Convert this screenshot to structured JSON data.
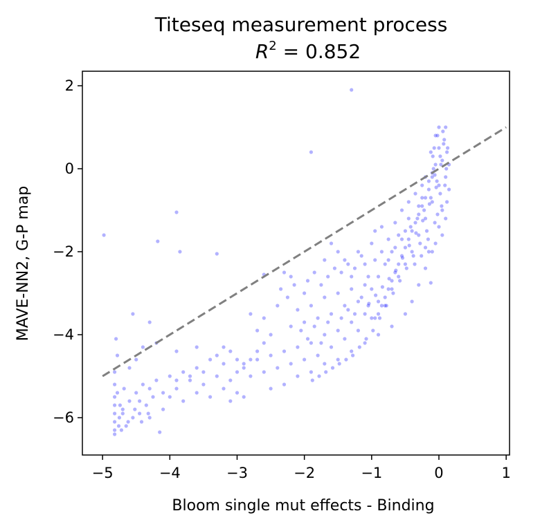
{
  "chart_data": {
    "type": "scatter",
    "title": "Titeseq measurement process",
    "subtitle_prefix": "R",
    "subtitle_exp": "2",
    "subtitle_suffix": " = 0.852",
    "xlabel": "Bloom single mut effects - Binding",
    "ylabel": "MAVE-NN2, G-P map",
    "xlim": [
      -5.3,
      1.05
    ],
    "ylim": [
      -6.9,
      2.35
    ],
    "xticks": [
      -5,
      -4,
      -3,
      -2,
      -1,
      0,
      1
    ],
    "xtick_labels": [
      "−5",
      "−4",
      "−3",
      "−2",
      "−1",
      "0",
      "1"
    ],
    "yticks": [
      -6,
      -4,
      -2,
      0,
      2
    ],
    "ytick_labels": [
      "−6",
      "−4",
      "−2",
      "0",
      "2"
    ],
    "grid": false,
    "point_color": "#0000ff",
    "reference_line": {
      "x": [
        -5,
        1
      ],
      "y": [
        -5,
        1
      ],
      "color": "#808080",
      "style": "dashed"
    },
    "series": [
      {
        "points": [
          [
            -4.82,
            -6.1
          ],
          [
            -4.82,
            -5.9
          ],
          [
            -4.82,
            -6.3
          ],
          [
            -4.82,
            -5.5
          ],
          [
            -4.82,
            -5.2
          ],
          [
            -4.82,
            -4.9
          ],
          [
            -4.82,
            -6.4
          ],
          [
            -4.82,
            -5.7
          ],
          [
            -4.8,
            -4.1
          ],
          [
            -4.78,
            -4.5
          ],
          [
            -4.7,
            -5.8
          ],
          [
            -4.65,
            -6.2
          ],
          [
            -4.6,
            -5.6
          ],
          [
            -4.55,
            -6.0
          ],
          [
            -4.5,
            -5.4
          ],
          [
            -4.45,
            -5.9
          ],
          [
            -4.4,
            -5.2
          ],
          [
            -4.35,
            -5.7
          ],
          [
            -4.3,
            -6.0
          ],
          [
            -4.25,
            -5.5
          ],
          [
            -4.6,
            -4.8
          ],
          [
            -4.5,
            -4.6
          ],
          [
            -4.72,
            -6.3
          ],
          [
            -4.68,
            -5.3
          ],
          [
            -4.55,
            -3.5
          ],
          [
            -4.3,
            -3.7
          ],
          [
            -4.2,
            -4.2
          ],
          [
            -4.98,
            -1.6
          ],
          [
            -4.18,
            -1.75
          ],
          [
            -3.9,
            -1.05
          ],
          [
            -3.85,
            -2.0
          ],
          [
            -3.3,
            -2.05
          ],
          [
            -1.9,
            0.4
          ],
          [
            -1.3,
            1.9
          ],
          [
            -4.15,
            -6.35
          ],
          [
            -4.1,
            -5.8
          ],
          [
            -4.0,
            -5.5
          ],
          [
            -3.9,
            -5.3
          ],
          [
            -3.8,
            -5.6
          ],
          [
            -3.7,
            -5.1
          ],
          [
            -3.6,
            -5.4
          ],
          [
            -3.5,
            -5.2
          ],
          [
            -3.4,
            -5.5
          ],
          [
            -3.3,
            -5.0
          ],
          [
            -3.2,
            -5.3
          ],
          [
            -3.1,
            -5.1
          ],
          [
            -3.0,
            -5.4
          ],
          [
            -3.0,
            -4.9
          ],
          [
            -2.9,
            -4.7
          ],
          [
            -2.8,
            -5.0
          ],
          [
            -2.7,
            -4.6
          ],
          [
            -2.6,
            -4.9
          ],
          [
            -2.5,
            -4.5
          ],
          [
            -2.4,
            -4.8
          ],
          [
            -2.3,
            -4.4
          ],
          [
            -2.2,
            -4.7
          ],
          [
            -2.1,
            -4.3
          ],
          [
            -2.0,
            -4.6
          ],
          [
            -1.9,
            -4.2
          ],
          [
            -1.8,
            -4.5
          ],
          [
            -1.7,
            -4.0
          ],
          [
            -1.6,
            -4.3
          ],
          [
            -1.5,
            -3.9
          ],
          [
            -1.4,
            -4.1
          ],
          [
            -1.3,
            -3.7
          ],
          [
            -1.2,
            -3.9
          ],
          [
            -1.1,
            -3.5
          ],
          [
            -1.0,
            -3.6
          ],
          [
            -0.9,
            -3.2
          ],
          [
            -0.8,
            -3.3
          ],
          [
            -0.7,
            -2.9
          ],
          [
            -0.6,
            -2.6
          ],
          [
            -0.5,
            -2.3
          ],
          [
            -0.4,
            -2.0
          ],
          [
            -0.3,
            -1.6
          ],
          [
            -0.2,
            -1.2
          ],
          [
            -0.1,
            -0.8
          ],
          [
            0.0,
            -0.4
          ],
          [
            0.05,
            0.2
          ],
          [
            0.0,
            0.5
          ],
          [
            0.02,
            0.3
          ],
          [
            -0.05,
            0.1
          ],
          [
            -0.1,
            -0.2
          ],
          [
            -0.15,
            -0.5
          ],
          [
            -0.2,
            -0.7
          ],
          [
            -0.25,
            -0.9
          ],
          [
            -0.3,
            -1.1
          ],
          [
            -0.35,
            -1.3
          ],
          [
            -0.4,
            -1.5
          ],
          [
            -0.45,
            -1.7
          ],
          [
            -0.5,
            -1.9
          ],
          [
            -0.55,
            -2.1
          ],
          [
            -0.6,
            -2.3
          ],
          [
            -0.65,
            -2.5
          ],
          [
            -0.7,
            -2.7
          ],
          [
            -0.75,
            -2.9
          ],
          [
            -0.8,
            -3.1
          ],
          [
            -0.85,
            -3.3
          ],
          [
            -0.9,
            -3.5
          ],
          [
            -0.95,
            -3.6
          ],
          [
            0.1,
            1.0
          ],
          [
            0.0,
            1.0
          ],
          [
            -0.05,
            0.8
          ],
          [
            0.08,
            0.7
          ],
          [
            0.12,
            0.4
          ],
          [
            0.15,
            0.1
          ],
          [
            -0.12,
            -2.75
          ],
          [
            -0.2,
            -1.9
          ],
          [
            -0.15,
            -2.0
          ],
          [
            -2.6,
            -2.55
          ],
          [
            -2.3,
            -2.5
          ],
          [
            -2.2,
            -2.6
          ],
          [
            -2.0,
            -3.0
          ],
          [
            -1.7,
            -2.2
          ],
          [
            -1.6,
            -1.8
          ],
          [
            -1.5,
            -2.0
          ],
          [
            -1.55,
            -2.4
          ],
          [
            -1.4,
            -2.2
          ],
          [
            -1.3,
            -2.6
          ],
          [
            -1.2,
            -2.0
          ],
          [
            -1.1,
            -2.3
          ],
          [
            -1.0,
            -1.8
          ],
          [
            -1.05,
            -2.6
          ],
          [
            -0.95,
            -1.5
          ],
          [
            -0.85,
            -1.4
          ],
          [
            -0.75,
            -1.7
          ],
          [
            -0.65,
            -1.3
          ],
          [
            -0.55,
            -1.0
          ],
          [
            -0.45,
            -0.8
          ],
          [
            -0.35,
            -0.6
          ],
          [
            -0.25,
            -0.4
          ],
          [
            -0.2,
            -0.2
          ],
          [
            -0.1,
            -0.1
          ],
          [
            -2.4,
            -3.3
          ],
          [
            -2.2,
            -3.8
          ],
          [
            -2.1,
            -3.4
          ],
          [
            -2.0,
            -3.7
          ],
          [
            -1.9,
            -3.3
          ],
          [
            -1.8,
            -3.6
          ],
          [
            -1.7,
            -3.1
          ],
          [
            -1.6,
            -3.5
          ],
          [
            -1.5,
            -3.0
          ],
          [
            -1.4,
            -3.3
          ],
          [
            -1.3,
            -2.9
          ],
          [
            -1.2,
            -3.2
          ],
          [
            -1.1,
            -2.8
          ],
          [
            -2.8,
            -3.5
          ],
          [
            -2.7,
            -3.9
          ],
          [
            -2.6,
            -3.6
          ],
          [
            -2.5,
            -4.0
          ],
          [
            -3.2,
            -4.3
          ],
          [
            -3.4,
            -4.6
          ],
          [
            -3.6,
            -4.8
          ],
          [
            -3.8,
            -4.9
          ],
          [
            -4.0,
            -5.0
          ],
          [
            -4.2,
            -5.1
          ],
          [
            -3.6,
            -4.3
          ],
          [
            -3.9,
            -4.4
          ],
          [
            -4.4,
            -4.3
          ],
          [
            -3.1,
            -5.6
          ],
          [
            -2.9,
            -5.5
          ],
          [
            -2.5,
            -5.3
          ],
          [
            -2.3,
            -5.2
          ],
          [
            -2.1,
            -5.0
          ],
          [
            -1.9,
            -4.9
          ],
          [
            -1.7,
            -4.7
          ],
          [
            -1.5,
            -4.6
          ],
          [
            -1.3,
            -4.4
          ],
          [
            -1.1,
            -4.2
          ],
          [
            -0.9,
            -4.0
          ],
          [
            -0.7,
            -3.8
          ],
          [
            -0.5,
            -3.5
          ],
          [
            -0.4,
            -3.2
          ],
          [
            -0.3,
            -2.8
          ],
          [
            -0.2,
            -2.4
          ],
          [
            -0.1,
            -2.0
          ],
          [
            0.05,
            -1.6
          ],
          [
            0.1,
            -1.2
          ],
          [
            0.12,
            -0.8
          ],
          [
            0.15,
            -0.5
          ],
          [
            0.1,
            -0.2
          ],
          [
            0.05,
            -1.0
          ],
          [
            0.0,
            -1.4
          ],
          [
            -0.05,
            -1.8
          ],
          [
            -0.6,
            -1.6
          ],
          [
            -0.7,
            -2.0
          ],
          [
            -0.8,
            -2.3
          ],
          [
            -0.9,
            -2.6
          ],
          [
            -1.0,
            -2.9
          ],
          [
            -0.5,
            -1.5
          ],
          [
            -0.45,
            -1.2
          ],
          [
            -0.3,
            -0.9
          ],
          [
            -0.25,
            -0.7
          ],
          [
            -0.15,
            -0.3
          ],
          [
            -0.08,
            0.0
          ],
          [
            0.02,
            -0.6
          ],
          [
            -0.02,
            -1.1
          ],
          [
            -0.18,
            -1.5
          ],
          [
            -0.28,
            -1.8
          ],
          [
            -0.38,
            -2.1
          ],
          [
            -0.48,
            -2.4
          ],
          [
            -0.58,
            -2.7
          ],
          [
            -0.68,
            -3.0
          ],
          [
            -0.78,
            -3.3
          ],
          [
            -0.88,
            -3.6
          ],
          [
            -0.98,
            -3.9
          ],
          [
            -1.08,
            -4.1
          ],
          [
            -1.18,
            -4.3
          ],
          [
            -1.28,
            -4.5
          ],
          [
            -1.38,
            -4.6
          ],
          [
            -1.48,
            -4.7
          ],
          [
            -1.58,
            -4.8
          ],
          [
            -1.68,
            -4.9
          ],
          [
            -1.78,
            -5.0
          ],
          [
            -1.88,
            -5.1
          ],
          [
            -2.6,
            -4.2
          ],
          [
            -2.7,
            -4.4
          ],
          [
            -2.8,
            -4.6
          ],
          [
            -2.9,
            -4.8
          ],
          [
            -3.0,
            -4.6
          ],
          [
            -3.1,
            -4.4
          ],
          [
            -3.2,
            -4.7
          ],
          [
            -3.3,
            -4.5
          ],
          [
            -3.5,
            -4.9
          ],
          [
            -3.7,
            -5.0
          ],
          [
            -3.9,
            -5.1
          ],
          [
            -4.1,
            -5.4
          ],
          [
            -4.3,
            -5.3
          ],
          [
            -4.45,
            -5.6
          ],
          [
            -4.7,
            -5.9
          ],
          [
            -4.75,
            -6.0
          ],
          [
            -4.78,
            -5.4
          ],
          [
            -4.76,
            -6.2
          ],
          [
            -4.74,
            -5.7
          ],
          [
            -4.62,
            -6.1
          ],
          [
            -4.52,
            -5.8
          ],
          [
            -4.42,
            -6.1
          ],
          [
            -4.32,
            -5.9
          ],
          [
            -2.05,
            -3.9
          ],
          [
            -1.95,
            -4.1
          ],
          [
            -1.85,
            -3.8
          ],
          [
            -1.75,
            -4.2
          ],
          [
            -1.65,
            -3.7
          ],
          [
            -1.45,
            -3.6
          ],
          [
            -1.35,
            -3.4
          ],
          [
            -1.25,
            -3.5
          ],
          [
            -1.15,
            -3.1
          ],
          [
            -1.05,
            -3.3
          ],
          [
            -2.35,
            -2.9
          ],
          [
            -2.25,
            -3.1
          ],
          [
            -2.15,
            -2.8
          ],
          [
            -1.95,
            -2.7
          ],
          [
            -1.85,
            -2.5
          ],
          [
            -1.75,
            -2.8
          ],
          [
            -1.65,
            -2.6
          ],
          [
            -1.45,
            -2.5
          ],
          [
            -1.35,
            -2.3
          ],
          [
            -1.25,
            -2.4
          ],
          [
            -1.15,
            -2.1
          ],
          [
            -0.95,
            -2.2
          ],
          [
            -0.85,
            -2.0
          ],
          [
            -0.75,
            -2.2
          ],
          [
            -0.65,
            -1.9
          ],
          [
            -0.55,
            -1.7
          ],
          [
            -0.42,
            -1.4
          ],
          [
            -0.32,
            -1.2
          ],
          [
            -0.22,
            -1.0
          ],
          [
            -0.12,
            -0.7
          ],
          [
            -0.03,
            -0.3
          ],
          [
            0.03,
            0.1
          ],
          [
            0.07,
            0.6
          ],
          [
            -0.02,
            0.8
          ],
          [
            -0.07,
            0.5
          ],
          [
            -0.09,
            0.3
          ],
          [
            -0.06,
            -0.15
          ],
          [
            -0.04,
            -0.45
          ],
          [
            -0.14,
            -0.85
          ],
          [
            -0.24,
            -1.25
          ],
          [
            -0.34,
            -1.55
          ],
          [
            -0.44,
            -1.85
          ],
          [
            -0.54,
            -2.15
          ],
          [
            -0.64,
            -2.45
          ],
          [
            -0.74,
            -2.65
          ],
          [
            -0.84,
            -2.85
          ],
          [
            -0.94,
            -3.05
          ],
          [
            -1.04,
            -3.25
          ],
          [
            -0.36,
            -2.3
          ],
          [
            -0.26,
            -2.1
          ],
          [
            -0.16,
            -1.7
          ],
          [
            -0.06,
            -1.3
          ],
          [
            0.04,
            -0.9
          ],
          [
            0.09,
            -0.4
          ],
          [
            0.11,
            0.0
          ],
          [
            0.13,
            0.5
          ],
          [
            0.06,
            0.9
          ],
          [
            -0.12,
            0.4
          ]
        ]
      }
    ]
  }
}
